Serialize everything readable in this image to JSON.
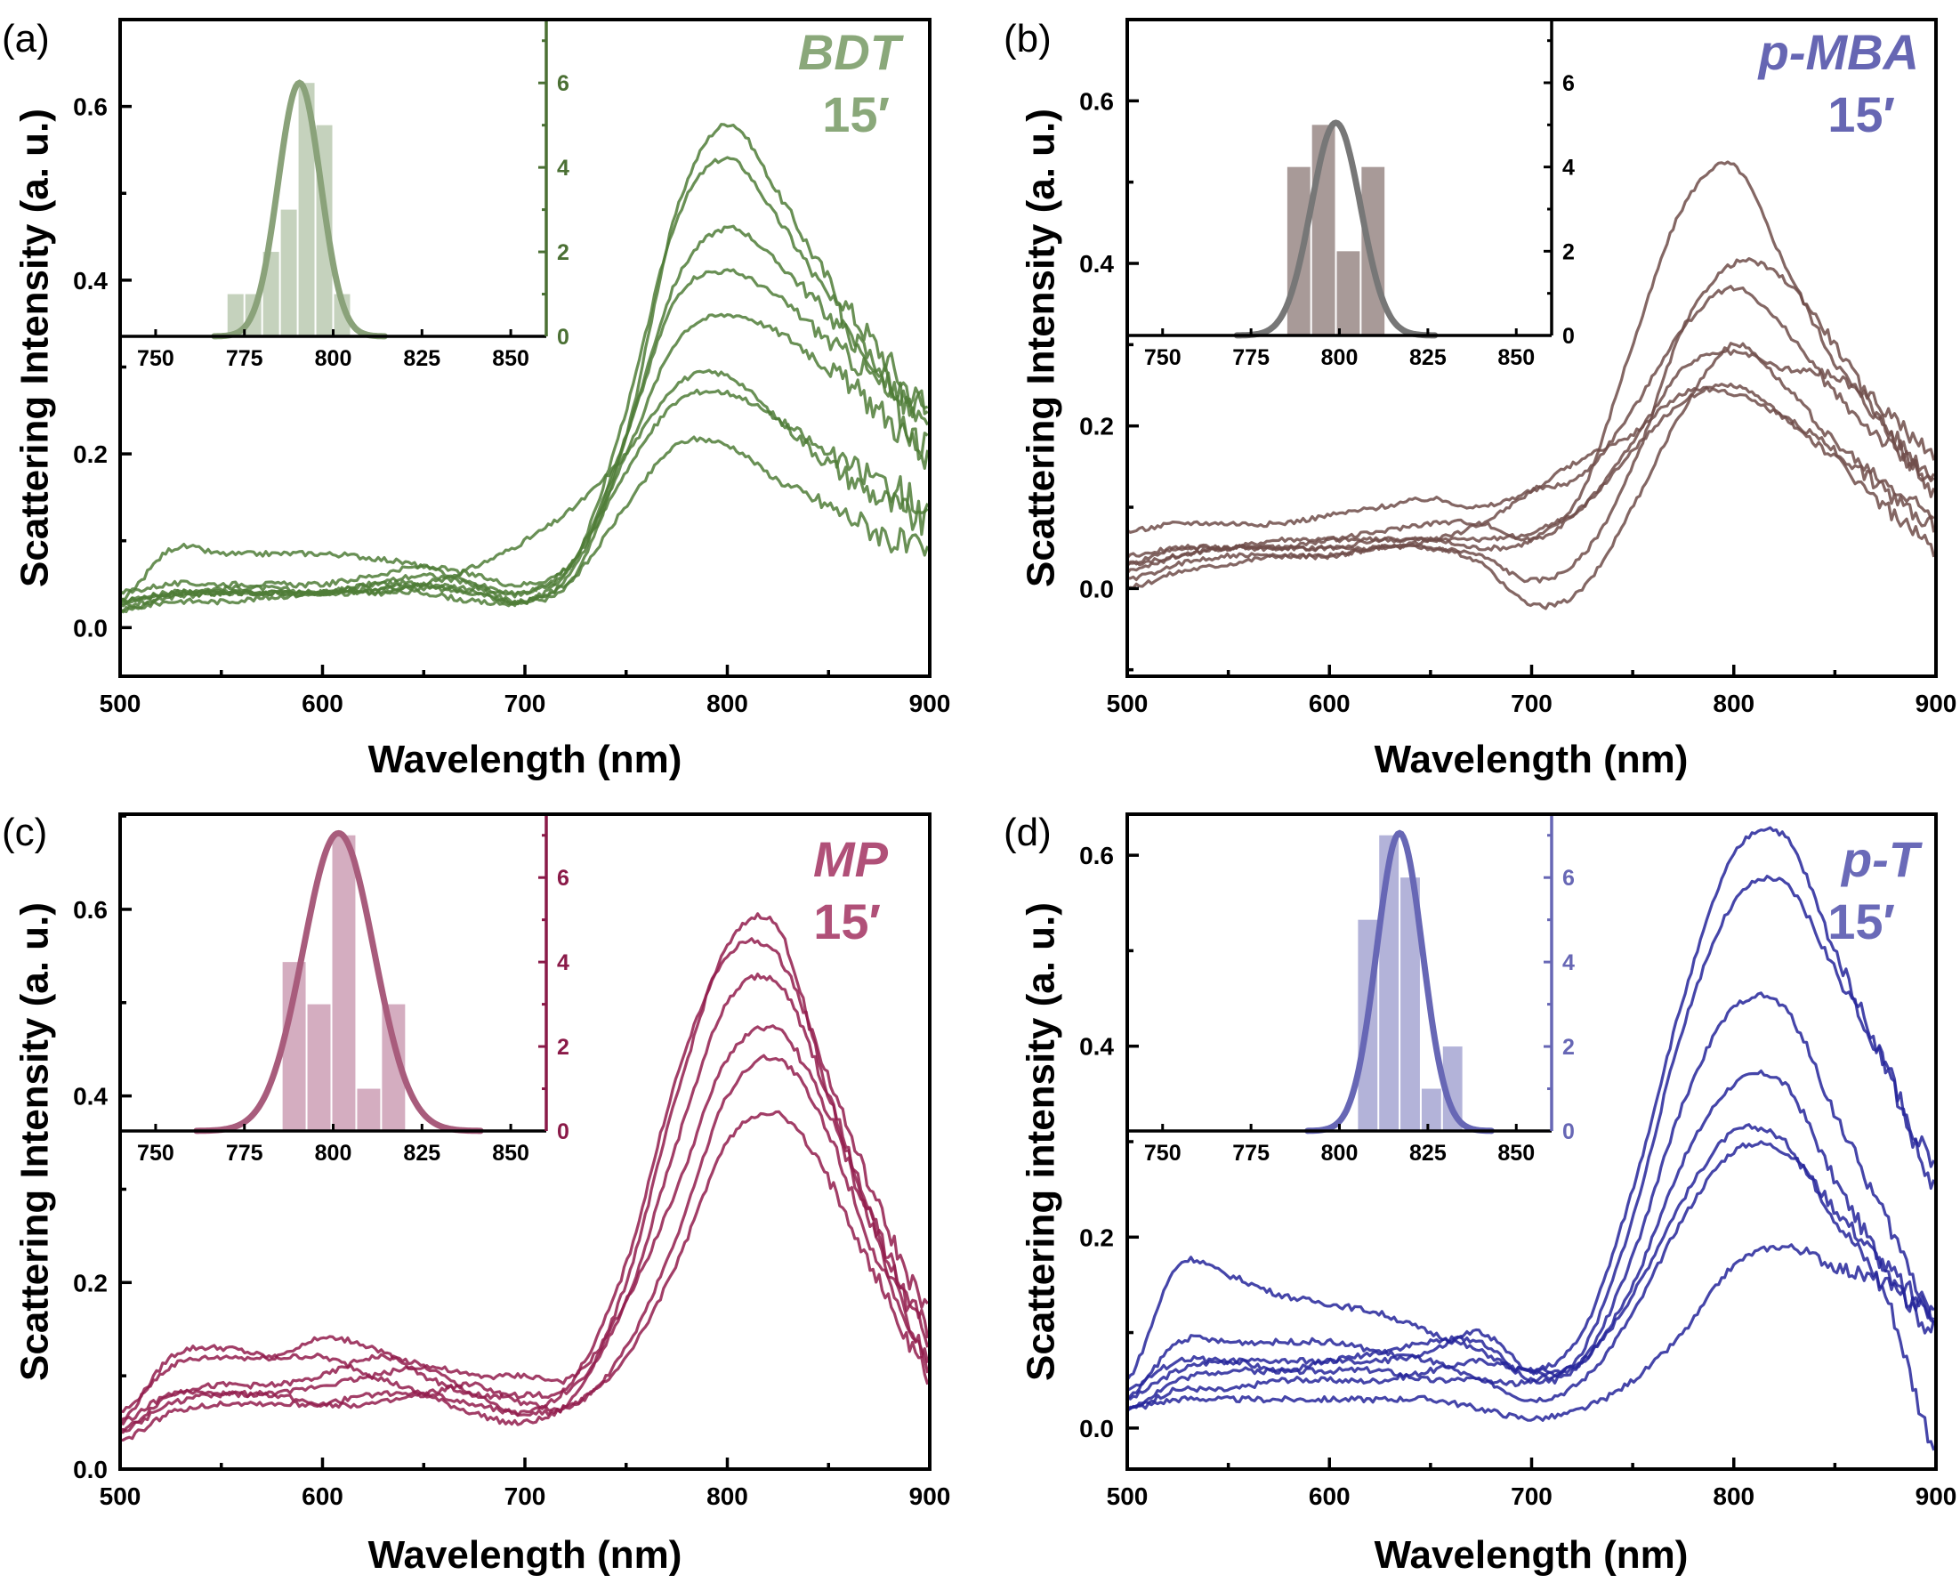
{
  "chart_data": [
    {
      "panel_label": "(a)",
      "type": "line",
      "sample": "BDT",
      "time": "15′",
      "xlabel": "Wavelength (nm)",
      "ylabel": "Scattering Intensity (a. u.)",
      "xlim": [
        500,
        900
      ],
      "ylim": [
        -0.056,
        0.7
      ],
      "xticks": [
        "500",
        "600",
        "700",
        "800",
        "900"
      ],
      "yticks": [
        "0.0",
        "0.2",
        "0.4",
        "0.6"
      ],
      "colors": {
        "curve": "#4f7d37",
        "label": "#8aa87a",
        "bar": "#c5d2bd",
        "fit": "#8aa27a",
        "inset_axis": "#4b7034"
      },
      "x": [
        500,
        525,
        550,
        575,
        600,
        625,
        650,
        675,
        700,
        725,
        750,
        775,
        800,
        825,
        850,
        875,
        900
      ],
      "series": [
        {
          "values": [
            0.03,
            0.04,
            0.04,
            0.04,
            0.04,
            0.05,
            0.05,
            0.04,
            0.03,
            0.06,
            0.22,
            0.48,
            0.58,
            0.5,
            0.4,
            0.32,
            0.25
          ]
        },
        {
          "values": [
            0.03,
            0.04,
            0.045,
            0.045,
            0.04,
            0.045,
            0.05,
            0.045,
            0.04,
            0.08,
            0.25,
            0.47,
            0.54,
            0.47,
            0.38,
            0.3,
            0.25
          ]
        },
        {
          "values": [
            0.02,
            0.035,
            0.04,
            0.04,
            0.04,
            0.045,
            0.045,
            0.04,
            0.03,
            0.07,
            0.22,
            0.4,
            0.46,
            0.42,
            0.36,
            0.3,
            0.22
          ]
        },
        {
          "values": [
            0.03,
            0.09,
            0.085,
            0.085,
            0.085,
            0.08,
            0.07,
            0.05,
            0.03,
            0.08,
            0.22,
            0.38,
            0.41,
            0.38,
            0.33,
            0.28,
            0.2
          ]
        },
        {
          "values": [
            0.04,
            0.05,
            0.05,
            0.05,
            0.05,
            0.06,
            0.07,
            0.06,
            0.05,
            0.08,
            0.2,
            0.33,
            0.36,
            0.34,
            0.3,
            0.25,
            0.2
          ]
        },
        {
          "values": [
            0.03,
            0.04,
            0.04,
            0.04,
            0.04,
            0.04,
            0.05,
            0.07,
            0.1,
            0.14,
            0.2,
            0.28,
            0.29,
            0.24,
            0.19,
            0.15,
            0.12
          ]
        },
        {
          "values": [
            0.02,
            0.03,
            0.03,
            0.035,
            0.04,
            0.04,
            0.04,
            0.03,
            0.03,
            0.06,
            0.14,
            0.21,
            0.21,
            0.17,
            0.14,
            0.11,
            0.08
          ]
        },
        {
          "values": [
            0.025,
            0.035,
            0.04,
            0.04,
            0.04,
            0.05,
            0.06,
            0.05,
            0.04,
            0.08,
            0.18,
            0.26,
            0.27,
            0.24,
            0.2,
            0.17,
            0.14
          ]
        }
      ],
      "inset": {
        "type": "histogram",
        "xlim": [
          740,
          860
        ],
        "ylim": [
          0,
          7.5
        ],
        "xticks": [
          "750",
          "775",
          "800",
          "825",
          "850"
        ],
        "yticks": [
          "0",
          "2",
          "4",
          "6"
        ],
        "bins": [
          {
            "start": 770,
            "end": 775,
            "count": 1
          },
          {
            "start": 775,
            "end": 780,
            "count": 1
          },
          {
            "start": 780,
            "end": 785,
            "count": 2
          },
          {
            "start": 785,
            "end": 790,
            "count": 3
          },
          {
            "start": 790,
            "end": 795,
            "count": 6
          },
          {
            "start": 795,
            "end": 800,
            "count": 5
          },
          {
            "start": 800,
            "end": 805,
            "count": 1
          }
        ],
        "fit": {
          "center": 790.5,
          "amplitude": 6.0,
          "sigma": 6.0
        }
      }
    },
    {
      "panel_label": "(b)",
      "type": "line",
      "sample": "p-MBA",
      "time": "15′",
      "xlabel": "Wavelength (nm)",
      "ylabel": "Scattering Intensity (a. u.)",
      "xlim": [
        500,
        900
      ],
      "ylim": [
        -0.108,
        0.7
      ],
      "xticks": [
        "500",
        "600",
        "700",
        "800",
        "900"
      ],
      "yticks": [
        "0.0",
        "0.2",
        "0.4",
        "0.6"
      ],
      "colors": {
        "curve": "#6e4c49",
        "label": "#6666b3",
        "bar": "#a89a98",
        "fit": "#777777",
        "inset_axis": "#000000"
      },
      "x": [
        500,
        525,
        550,
        575,
        600,
        625,
        650,
        675,
        700,
        725,
        750,
        775,
        800,
        825,
        850,
        875,
        900
      ],
      "series": [
        {
          "values": [
            0.03,
            0.05,
            0.05,
            0.06,
            0.06,
            0.06,
            0.06,
            0.05,
            0.06,
            0.12,
            0.3,
            0.47,
            0.52,
            0.4,
            0.28,
            0.2,
            0.14
          ]
        },
        {
          "values": [
            0.0,
            0.02,
            0.03,
            0.04,
            0.04,
            0.05,
            0.05,
            0.04,
            0.01,
            0.04,
            0.15,
            0.32,
            0.4,
            0.38,
            0.3,
            0.2,
            0.12
          ]
        },
        {
          "values": [
            0.07,
            0.08,
            0.08,
            0.08,
            0.09,
            0.1,
            0.11,
            0.1,
            0.12,
            0.14,
            0.22,
            0.32,
            0.37,
            0.32,
            0.24,
            0.18,
            0.13
          ]
        },
        {
          "values": [
            0.02,
            0.04,
            0.05,
            0.05,
            0.06,
            0.07,
            0.08,
            0.08,
            0.06,
            0.1,
            0.18,
            0.27,
            0.29,
            0.27,
            0.26,
            0.22,
            0.16
          ]
        },
        {
          "values": [
            0.04,
            0.05,
            0.05,
            0.05,
            0.05,
            0.05,
            0.06,
            0.08,
            0.12,
            0.16,
            0.19,
            0.24,
            0.24,
            0.21,
            0.17,
            0.12,
            0.08
          ]
        },
        {
          "values": [
            0.03,
            0.04,
            0.05,
            0.05,
            0.05,
            0.06,
            0.06,
            0.06,
            0.07,
            0.1,
            0.17,
            0.23,
            0.25,
            0.21,
            0.16,
            0.1,
            0.05
          ]
        },
        {
          "values": [
            0.01,
            0.03,
            0.04,
            0.04,
            0.04,
            0.05,
            0.05,
            0.03,
            -0.02,
            0.0,
            0.1,
            0.22,
            0.3,
            0.25,
            0.18,
            0.13,
            0.09
          ]
        }
      ],
      "inset": {
        "type": "histogram",
        "xlim": [
          740,
          860
        ],
        "ylim": [
          0,
          7.5
        ],
        "xticks": [
          "750",
          "775",
          "800",
          "825",
          "850"
        ],
        "yticks": [
          "0",
          "2",
          "4",
          "6"
        ],
        "bins": [
          {
            "start": 785,
            "end": 792,
            "count": 4
          },
          {
            "start": 792,
            "end": 799,
            "count": 5
          },
          {
            "start": 799,
            "end": 806,
            "count": 2
          },
          {
            "start": 806,
            "end": 813,
            "count": 4
          }
        ],
        "fit": {
          "center": 799,
          "amplitude": 5.05,
          "sigma": 7.0
        }
      }
    },
    {
      "panel_label": "(c)",
      "type": "line",
      "sample": "MP",
      "time": "15′",
      "xlabel": "Wavelength (nm)",
      "ylabel": "Scattering Intensity (a. u.)",
      "xlim": [
        500,
        900
      ],
      "ylim": [
        0.0,
        0.702
      ],
      "xticks": [
        "500",
        "600",
        "700",
        "800",
        "900"
      ],
      "yticks": [
        "0.0",
        "0.2",
        "0.4",
        "0.6"
      ],
      "colors": {
        "curve": "#921c4c",
        "label": "#b05078",
        "bar": "#d4adc0",
        "fit": "#a85c7c",
        "inset_axis": "#8a1a48"
      },
      "x": [
        500,
        525,
        550,
        575,
        600,
        625,
        650,
        675,
        700,
        725,
        750,
        775,
        800,
        825,
        850,
        875,
        900
      ],
      "series": [
        {
          "values": [
            0.05,
            0.12,
            0.13,
            0.12,
            0.12,
            0.1,
            0.08,
            0.06,
            0.05,
            0.08,
            0.2,
            0.4,
            0.56,
            0.58,
            0.4,
            0.25,
            0.15
          ]
        },
        {
          "values": [
            0.04,
            0.08,
            0.09,
            0.09,
            0.1,
            0.12,
            0.11,
            0.08,
            0.06,
            0.1,
            0.22,
            0.42,
            0.55,
            0.55,
            0.42,
            0.28,
            0.17
          ]
        },
        {
          "values": [
            0.06,
            0.11,
            0.12,
            0.12,
            0.14,
            0.13,
            0.1,
            0.08,
            0.08,
            0.09,
            0.18,
            0.35,
            0.5,
            0.52,
            0.4,
            0.25,
            0.14
          ]
        },
        {
          "values": [
            0.04,
            0.07,
            0.08,
            0.08,
            0.09,
            0.1,
            0.11,
            0.1,
            0.1,
            0.1,
            0.18,
            0.3,
            0.44,
            0.47,
            0.38,
            0.24,
            0.12
          ]
        },
        {
          "values": [
            0.05,
            0.08,
            0.08,
            0.08,
            0.07,
            0.07,
            0.08,
            0.09,
            0.07,
            0.07,
            0.13,
            0.25,
            0.4,
            0.44,
            0.36,
            0.22,
            0.11
          ]
        },
        {
          "values": [
            0.03,
            0.06,
            0.07,
            0.07,
            0.07,
            0.08,
            0.08,
            0.07,
            0.06,
            0.07,
            0.12,
            0.22,
            0.35,
            0.38,
            0.31,
            0.2,
            0.1
          ]
        }
      ],
      "inset": {
        "type": "histogram",
        "xlim": [
          740,
          860
        ],
        "ylim": [
          0,
          7.5
        ],
        "xticks": [
          "750",
          "775",
          "800",
          "825",
          "850"
        ],
        "yticks": [
          "0",
          "2",
          "4",
          "6"
        ],
        "bins": [
          {
            "start": 785.5,
            "end": 792.5,
            "count": 4
          },
          {
            "start": 792.5,
            "end": 799.5,
            "count": 3
          },
          {
            "start": 799.5,
            "end": 806.5,
            "count": 7
          },
          {
            "start": 806.5,
            "end": 813.5,
            "count": 1
          },
          {
            "start": 813.5,
            "end": 820.5,
            "count": 3
          }
        ],
        "fit": {
          "center": 801.5,
          "amplitude": 7.05,
          "sigma": 10.0
        }
      }
    },
    {
      "panel_label": "(d)",
      "type": "line",
      "sample": "p-T",
      "time": "15′",
      "xlabel": "Wavelength (nm)",
      "ylabel": "Scattering intensity (a. u.)",
      "xlim": [
        500,
        900
      ],
      "ylim": [
        -0.043,
        0.643
      ],
      "xticks": [
        "500",
        "600",
        "700",
        "800",
        "900"
      ],
      "yticks": [
        "0.0",
        "0.2",
        "0.4",
        "0.6"
      ],
      "colors": {
        "curve": "#24249a",
        "label": "#6a6ab8",
        "bar": "#b3b3d9",
        "fit": "#6767b5",
        "inset_axis": "#6767b5"
      },
      "x": [
        500,
        525,
        550,
        575,
        600,
        625,
        650,
        675,
        700,
        725,
        750,
        775,
        800,
        825,
        850,
        875,
        900
      ],
      "series": [
        {
          "values": [
            0.05,
            0.17,
            0.16,
            0.14,
            0.13,
            0.12,
            0.1,
            0.08,
            0.06,
            0.1,
            0.25,
            0.45,
            0.6,
            0.62,
            0.5,
            0.38,
            0.25
          ]
        },
        {
          "values": [
            0.03,
            0.09,
            0.09,
            0.09,
            0.09,
            0.08,
            0.07,
            0.05,
            0.05,
            0.08,
            0.22,
            0.42,
            0.55,
            0.57,
            0.48,
            0.38,
            0.27
          ]
        },
        {
          "values": [
            0.02,
            0.05,
            0.06,
            0.06,
            0.07,
            0.08,
            0.09,
            0.09,
            0.05,
            0.07,
            0.18,
            0.34,
            0.44,
            0.44,
            0.33,
            0.22,
            0.12
          ]
        },
        {
          "values": [
            0.04,
            0.07,
            0.07,
            0.07,
            0.07,
            0.07,
            0.08,
            0.1,
            0.06,
            0.07,
            0.15,
            0.28,
            0.36,
            0.36,
            0.26,
            0.17,
            0.1
          ]
        },
        {
          "values": [
            0.02,
            0.04,
            0.04,
            0.05,
            0.05,
            0.05,
            0.06,
            0.07,
            0.06,
            0.07,
            0.14,
            0.24,
            0.31,
            0.3,
            0.22,
            0.14,
            -0.02
          ]
        },
        {
          "values": [
            0.03,
            0.06,
            0.07,
            0.06,
            0.06,
            0.06,
            0.05,
            0.05,
            0.03,
            0.05,
            0.12,
            0.22,
            0.29,
            0.29,
            0.23,
            0.17,
            0.12
          ]
        },
        {
          "values": [
            0.02,
            0.03,
            0.03,
            0.03,
            0.03,
            0.03,
            0.03,
            0.02,
            0.01,
            0.02,
            0.05,
            0.1,
            0.17,
            0.19,
            0.17,
            0.15,
            0.12
          ]
        }
      ],
      "inset": {
        "type": "histogram",
        "xlim": [
          740,
          860
        ],
        "ylim": [
          0,
          7.5
        ],
        "xticks": [
          "750",
          "775",
          "800",
          "825",
          "850"
        ],
        "yticks": [
          "0",
          "2",
          "4",
          "6"
        ],
        "bins": [
          {
            "start": 805,
            "end": 811,
            "count": 5
          },
          {
            "start": 811,
            "end": 817,
            "count": 7
          },
          {
            "start": 817,
            "end": 823,
            "count": 6
          },
          {
            "start": 823,
            "end": 829,
            "count": 1
          },
          {
            "start": 829,
            "end": 835,
            "count": 2
          }
        ],
        "fit": {
          "center": 817,
          "amplitude": 7.05,
          "sigma": 6.5
        }
      }
    }
  ]
}
